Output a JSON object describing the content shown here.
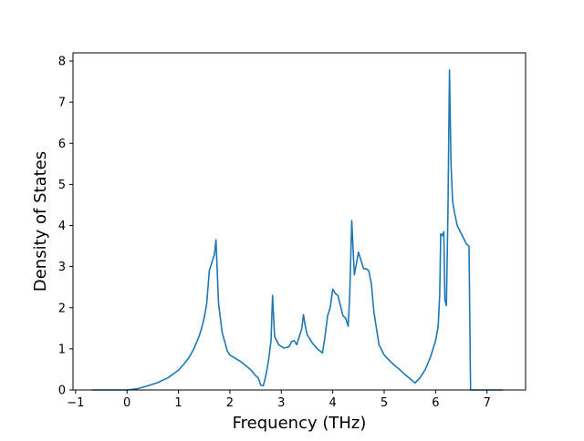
{
  "chart_data": {
    "type": "line",
    "title": "",
    "xlabel": "Frequency (THz)",
    "ylabel": "Density of States",
    "xlim": [
      -1.05,
      7.75
    ],
    "ylim": [
      0,
      8.2
    ],
    "xticks": [
      -1,
      0,
      1,
      2,
      3,
      4,
      5,
      6,
      7
    ],
    "xtick_labels": [
      "−1",
      "0",
      "1",
      "2",
      "3",
      "4",
      "5",
      "6",
      "7"
    ],
    "yticks": [
      0,
      1,
      2,
      3,
      4,
      5,
      6,
      7,
      8
    ],
    "ytick_labels": [
      "0",
      "1",
      "2",
      "3",
      "4",
      "5",
      "6",
      "7",
      "8"
    ],
    "grid": false,
    "legend": "none",
    "series": [
      {
        "color": "#1f77b4",
        "x": [
          -0.68,
          -0.4,
          -0.2,
          0.0,
          0.2,
          0.4,
          0.6,
          0.8,
          1.0,
          1.1,
          1.2,
          1.3,
          1.4,
          1.45,
          1.5,
          1.55,
          1.6,
          1.65,
          1.7,
          1.73,
          1.78,
          1.85,
          1.95,
          2.0,
          2.2,
          2.4,
          2.5,
          2.55,
          2.6,
          2.65,
          2.7,
          2.75,
          2.8,
          2.83,
          2.87,
          2.95,
          3.05,
          3.15,
          3.2,
          3.25,
          3.3,
          3.35,
          3.4,
          3.43,
          3.46,
          3.5,
          3.6,
          3.7,
          3.8,
          3.85,
          3.9,
          3.95,
          4.0,
          4.05,
          4.1,
          4.15,
          4.2,
          4.25,
          4.3,
          4.33,
          4.37,
          4.42,
          4.45,
          4.5,
          4.6,
          4.65,
          4.7,
          4.75,
          4.8,
          4.9,
          5.0,
          5.1,
          5.2,
          5.3,
          5.4,
          5.45,
          5.5,
          5.6,
          5.7,
          5.8,
          5.9,
          6.0,
          6.05,
          6.08,
          6.1,
          6.13,
          6.16,
          6.18,
          6.21,
          6.24,
          6.27,
          6.3,
          6.33,
          6.37,
          6.42,
          6.5,
          6.6,
          6.65,
          6.68,
          6.75,
          7.0,
          7.3
        ],
        "values": [
          0.0,
          0.0,
          0.0,
          0.0,
          0.03,
          0.1,
          0.18,
          0.3,
          0.48,
          0.62,
          0.78,
          1.0,
          1.3,
          1.5,
          1.75,
          2.1,
          2.9,
          3.1,
          3.3,
          3.65,
          2.1,
          1.4,
          0.95,
          0.85,
          0.7,
          0.5,
          0.35,
          0.3,
          0.12,
          0.1,
          0.35,
          0.7,
          1.2,
          2.3,
          1.3,
          1.1,
          1.02,
          1.05,
          1.18,
          1.2,
          1.1,
          1.3,
          1.5,
          1.83,
          1.6,
          1.35,
          1.15,
          1.0,
          0.9,
          1.3,
          1.8,
          2.0,
          2.45,
          2.35,
          2.3,
          2.05,
          1.8,
          1.75,
          1.55,
          2.3,
          4.12,
          2.8,
          3.0,
          3.35,
          2.95,
          2.95,
          2.9,
          2.6,
          1.9,
          1.1,
          0.85,
          0.72,
          0.6,
          0.5,
          0.38,
          0.33,
          0.28,
          0.17,
          0.3,
          0.5,
          0.8,
          1.2,
          1.55,
          2.3,
          3.8,
          3.75,
          3.85,
          2.2,
          2.05,
          4.3,
          7.78,
          5.5,
          4.6,
          4.3,
          4.0,
          3.8,
          3.55,
          3.5,
          0.0,
          0.0,
          0.0,
          0.0
        ]
      }
    ]
  }
}
